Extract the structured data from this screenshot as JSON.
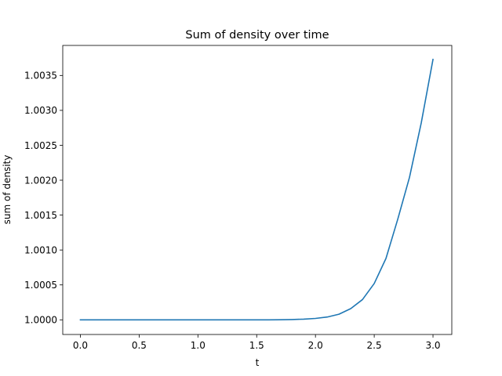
{
  "chart_data": {
    "type": "line",
    "title": "Sum of density over time",
    "xlabel": "t",
    "ylabel": "sum of density",
    "xlim": [
      -0.15,
      3.16
    ],
    "ylim": [
      0.99979,
      1.00393
    ],
    "xticks": [
      0.0,
      0.5,
      1.0,
      1.5,
      2.0,
      2.5,
      3.0
    ],
    "xtick_labels": [
      "0.0",
      "0.5",
      "1.0",
      "1.5",
      "2.0",
      "2.5",
      "3.0"
    ],
    "yticks": [
      1.0,
      1.0005,
      1.001,
      1.0015,
      1.002,
      1.0025,
      1.003,
      1.0035
    ],
    "ytick_labels": [
      "1.0000",
      "1.0005",
      "1.0010",
      "1.0015",
      "1.0020",
      "1.0025",
      "1.0030",
      "1.0035"
    ],
    "grid": false,
    "legend": "none",
    "series": [
      {
        "color": "#1f77b4",
        "x": [
          0.0,
          0.2,
          0.4,
          0.6,
          0.8,
          1.0,
          1.2,
          1.4,
          1.6,
          1.7,
          1.8,
          1.9,
          2.0,
          2.1,
          2.2,
          2.3,
          2.4,
          2.5,
          2.6,
          2.7,
          2.8,
          2.9,
          3.0
        ],
        "y": [
          1.0,
          1.0,
          1.0,
          1.0,
          1.0,
          1.0,
          1.0,
          1.0,
          1.0,
          1.000001,
          1.000004,
          1.00001,
          1.00002,
          1.00004,
          1.00008,
          1.00016,
          1.00029,
          1.00052,
          1.00088,
          1.00144,
          1.00204,
          1.00282,
          1.00373
        ]
      }
    ]
  }
}
